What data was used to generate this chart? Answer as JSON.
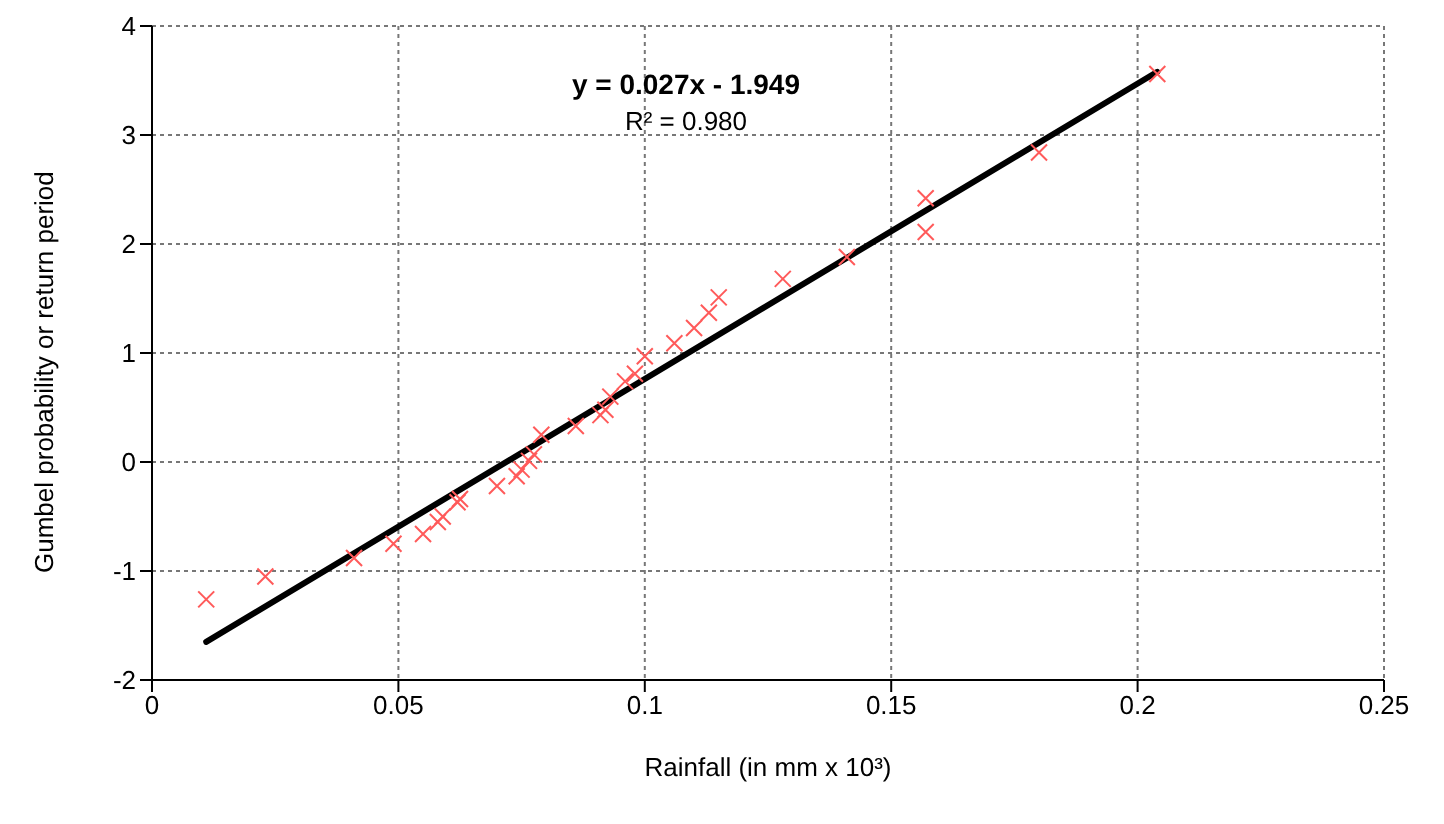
{
  "chart_data": {
    "type": "scatter",
    "xlabel": "Rainfall (in mm x 10³)",
    "ylabel": "Gumbel probability or return period",
    "annotations": [
      "y = 0.027x - 1.949",
      "R² = 0.980"
    ],
    "x": [
      0.011,
      0.023,
      0.041,
      0.049,
      0.055,
      0.058,
      0.059,
      0.062,
      0.0625,
      0.07,
      0.074,
      0.075,
      0.0765,
      0.0775,
      0.079,
      0.086,
      0.091,
      0.092,
      0.093,
      0.096,
      0.098,
      0.1,
      0.106,
      0.11,
      0.113,
      0.115,
      0.128,
      0.141,
      0.157,
      0.157,
      0.18,
      0.204
    ],
    "series": [
      {
        "color": "#ff5a5a",
        "marker": "cross",
        "values": [
          -1.26,
          -1.05,
          -0.88,
          -0.75,
          -0.66,
          -0.55,
          -0.5,
          -0.37,
          -0.34,
          -0.22,
          -0.13,
          -0.07,
          0.01,
          0.07,
          0.25,
          0.33,
          0.43,
          0.48,
          0.6,
          0.74,
          0.81,
          0.97,
          1.09,
          1.23,
          1.37,
          1.51,
          1.68,
          1.88,
          2.42,
          2.11,
          2.84,
          3.56
        ]
      },
      {
        "type": "line",
        "color": "#000000",
        "marker": "none",
        "x": [
          0.011,
          0.204
        ],
        "values": [
          -1.65,
          3.58
        ]
      }
    ],
    "xlim": [
      0,
      0.25
    ],
    "xticks": [
      0,
      0.05,
      0.1,
      0.15,
      0.2,
      0.25
    ],
    "ylim": [
      -2,
      4
    ],
    "yticks": [
      -2,
      -1,
      0,
      1,
      2,
      3,
      4
    ],
    "grid": true
  }
}
